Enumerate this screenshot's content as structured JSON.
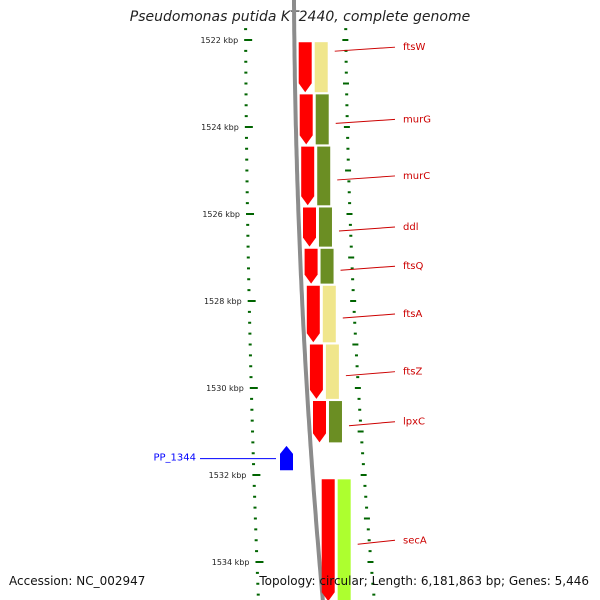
{
  "title": "Pseudomonas putida KT2440, complete genome",
  "accession_text": "Accession: NC_002947",
  "summary_text": "Topology: circular; Length: 6,181,863 bp; Genes: 5,446",
  "scale": {
    "unit": "kbp",
    "kbp_values": [
      1522,
      1524,
      1526,
      1528,
      1530,
      1532,
      1534
    ],
    "tick_labels": [
      "1522 kbp",
      "1524 kbp",
      "1526 kbp",
      "1528 kbp",
      "1530 kbp",
      "1532 kbp",
      "1534 kbp"
    ]
  },
  "colors": {
    "backbone": "#8c8c8c",
    "forward_cds": "#ff0000",
    "gene_label": "#cc0000",
    "highlight_gene": "#0000ff",
    "tick": "#006400",
    "olive": "#6b8e23",
    "pale": "#f0e68c",
    "lime": "#adff2f"
  },
  "genes": [
    {
      "name": "ftsW",
      "start_kbp": 1522.05,
      "end_kbp": 1523.2,
      "strand": "+",
      "band_color": "pale"
    },
    {
      "name": "murG",
      "start_kbp": 1523.25,
      "end_kbp": 1524.4,
      "strand": "+",
      "band_color": "olive"
    },
    {
      "name": "murC",
      "start_kbp": 1524.45,
      "end_kbp": 1525.8,
      "strand": "+",
      "band_color": "olive"
    },
    {
      "name": "ddl",
      "start_kbp": 1525.85,
      "end_kbp": 1526.75,
      "strand": "+",
      "band_color": "olive"
    },
    {
      "name": "ftsQ",
      "start_kbp": 1526.8,
      "end_kbp": 1527.6,
      "strand": "+",
      "band_color": "olive"
    },
    {
      "name": "ftsA",
      "start_kbp": 1527.65,
      "end_kbp": 1528.95,
      "strand": "+",
      "band_color": "pale"
    },
    {
      "name": "ftsZ",
      "start_kbp": 1529.0,
      "end_kbp": 1530.25,
      "strand": "+",
      "band_color": "pale"
    },
    {
      "name": "lpxC",
      "start_kbp": 1530.3,
      "end_kbp": 1531.25,
      "strand": "+",
      "band_color": "olive"
    },
    {
      "name": "secA",
      "start_kbp": 1532.1,
      "end_kbp": 1534.9,
      "strand": "+",
      "band_color": "lime"
    }
  ],
  "reverse_feature": {
    "name": "PP_1344",
    "start_kbp": 1531.4,
    "end_kbp": 1531.8,
    "strand": "-"
  }
}
